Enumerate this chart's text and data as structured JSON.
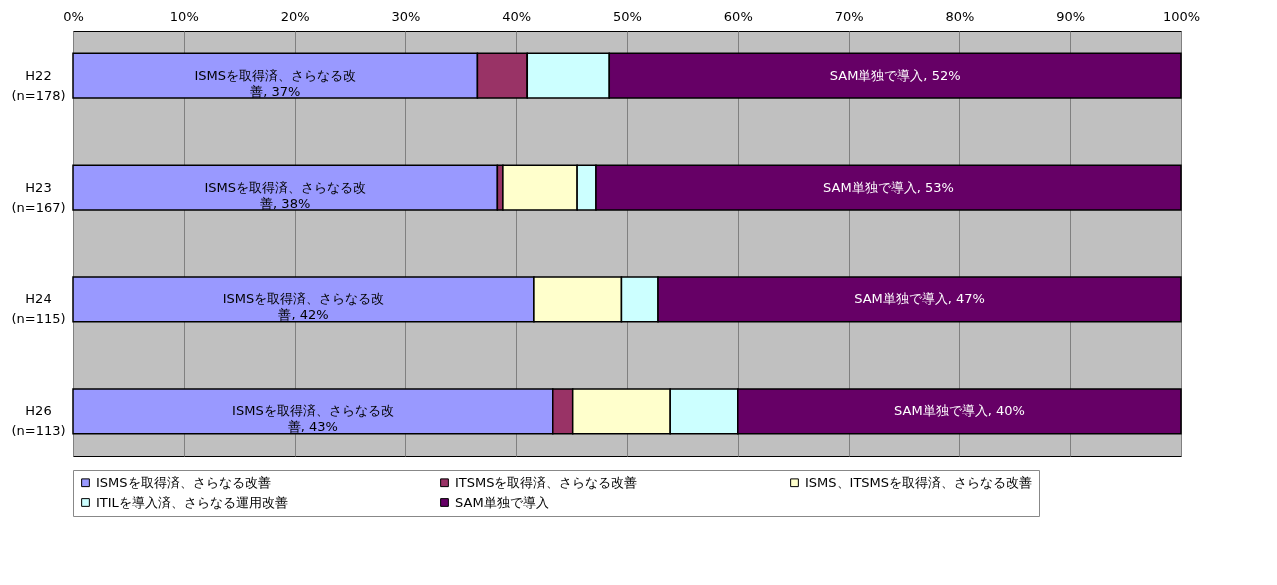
{
  "chart_data": {
    "type": "bar",
    "orientation": "horizontal",
    "stacked": true,
    "categories": [
      "H22\n(n=178)",
      "H23\n(n=167)",
      "H24\n(n=115)",
      "H26\n(n=113)"
    ],
    "series": [
      {
        "name": "ISMSを取得済、さらなる改善",
        "color": "#9999ff",
        "values": [
          36.5,
          38.3,
          41.6,
          43.3
        ],
        "value_labels": [
          "ISMSを取得済、さらなる改善, 37%",
          "ISMSを取得済、さらなる改善, 38%",
          "ISMSを取得済、さらなる改善, 42%",
          "ISMSを取得済、さらなる改善, 43%"
        ]
      },
      {
        "name": "ITSMSを取得済、さらなる改善",
        "color": "#993366",
        "values": [
          4.5,
          0.5,
          0,
          1.8
        ]
      },
      {
        "name": "ISMS、ITSMSを取得済、さらなる改善",
        "color": "#ffffcc",
        "values": [
          0,
          6.7,
          7.9,
          8.8
        ]
      },
      {
        "name": "ITILを導入済、さらなる運用改善",
        "color": "#ccffff",
        "values": [
          7.4,
          1.7,
          3.3,
          6.1
        ]
      },
      {
        "name": "SAM単独で導入",
        "color": "#660066",
        "values": [
          51.6,
          52.8,
          47.2,
          40
        ],
        "value_labels": [
          "SAM単独で導入, 52%",
          "SAM単独で導入, 53%",
          "SAM単独で導入, 47%",
          "SAM単独で導入, 40%"
        ]
      }
    ],
    "xlim": [
      0,
      100
    ],
    "xticks": [
      {
        "value": 0,
        "label": "0%"
      },
      {
        "value": 10,
        "label": "10%"
      },
      {
        "value": 20,
        "label": "20%"
      },
      {
        "value": 30,
        "label": "30%"
      },
      {
        "value": 40,
        "label": "40%"
      },
      {
        "value": 50,
        "label": "50%"
      },
      {
        "value": 60,
        "label": "60%"
      },
      {
        "value": 70,
        "label": "70%"
      },
      {
        "value": 80,
        "label": "80%"
      },
      {
        "value": 90,
        "label": "90%"
      },
      {
        "value": 100,
        "label": "100%"
      }
    ],
    "grid": "x",
    "legend": "bottom"
  }
}
